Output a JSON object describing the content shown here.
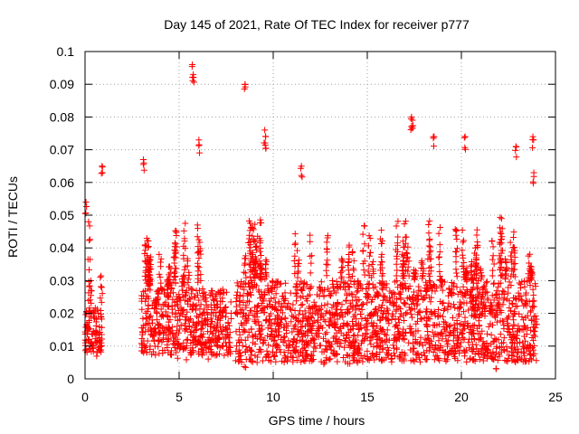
{
  "chart_data": {
    "type": "scatter",
    "title": "Day 145 of 2021, Rate Of TEC Index for receiver p777",
    "xlabel": "GPS time / hours",
    "ylabel": "ROTI / TECUs",
    "xlim": [
      0,
      25
    ],
    "ylim": [
      0,
      0.1
    ],
    "xticks": [
      0,
      5,
      10,
      15,
      20,
      25
    ],
    "xtick_labels": [
      "0",
      "5",
      "10",
      "15",
      "20",
      "25"
    ],
    "yticks": [
      0,
      0.01,
      0.02,
      0.03,
      0.04,
      0.05,
      0.06,
      0.07,
      0.08,
      0.09,
      0.1
    ],
    "ytick_labels": [
      "0",
      "0.01",
      "0.02",
      "0.03",
      "0.04",
      "0.05",
      "0.06",
      "0.07",
      "0.08",
      "0.09",
      "0.1"
    ],
    "grid": true,
    "marker": "+",
    "color": "#ff0000",
    "series": [
      {
        "name": "ROTI",
        "segments": [
          {
            "t_start": 0.0,
            "t_end": 0.9,
            "base_low": 0.008,
            "base_high": 0.022
          },
          {
            "t_start": 3.0,
            "t_end": 7.8,
            "base_low": 0.007,
            "base_high": 0.028
          },
          {
            "t_start": 8.0,
            "t_end": 24.0,
            "base_low": 0.005,
            "base_high": 0.03
          }
        ],
        "notable_points": [
          {
            "x": 0.05,
            "y": 0.054
          },
          {
            "x": 0.9,
            "y": 0.065
          },
          {
            "x": 3.1,
            "y": 0.067
          },
          {
            "x": 5.7,
            "y": 0.096
          },
          {
            "x": 5.75,
            "y": 0.093
          },
          {
            "x": 6.05,
            "y": 0.073
          },
          {
            "x": 8.5,
            "y": 0.09
          },
          {
            "x": 9.55,
            "y": 0.076
          },
          {
            "x": 9.6,
            "y": 0.074
          },
          {
            "x": 11.5,
            "y": 0.065
          },
          {
            "x": 17.35,
            "y": 0.08
          },
          {
            "x": 17.4,
            "y": 0.079
          },
          {
            "x": 18.55,
            "y": 0.074
          },
          {
            "x": 20.2,
            "y": 0.074
          },
          {
            "x": 22.9,
            "y": 0.071
          },
          {
            "x": 23.8,
            "y": 0.074
          },
          {
            "x": 23.85,
            "y": 0.063
          }
        ]
      }
    ]
  }
}
